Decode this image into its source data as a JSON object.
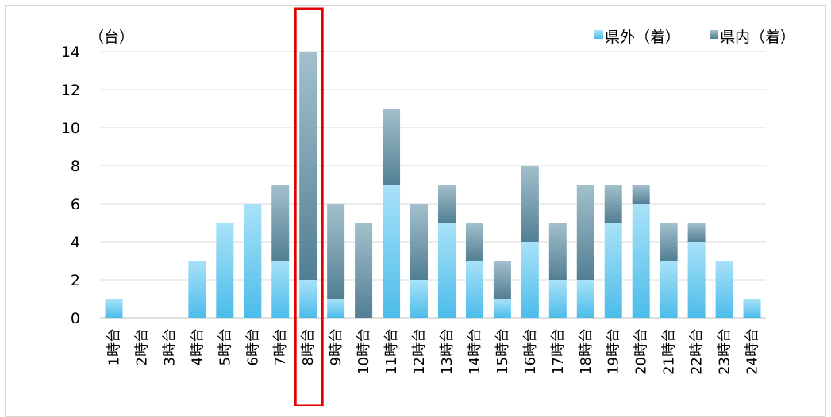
{
  "chart_data": {
    "type": "bar",
    "stacked": true,
    "unit_label": "（台）",
    "categories": [
      "1時台",
      "2時台",
      "3時台",
      "4時台",
      "5時台",
      "6時台",
      "7時台",
      "8時台",
      "9時台",
      "10時台",
      "11時台",
      "12時台",
      "13時台",
      "14時台",
      "15時台",
      "16時台",
      "17時台",
      "18時台",
      "19時台",
      "20時台",
      "21時台",
      "22時台",
      "23時台",
      "24時台"
    ],
    "series": [
      {
        "name": "県外（着）",
        "color": "#5bc3ec",
        "values": [
          1,
          0,
          0,
          3,
          5,
          6,
          3,
          2,
          1,
          0,
          7,
          2,
          5,
          3,
          1,
          4,
          2,
          2,
          5,
          6,
          3,
          4,
          3,
          1
        ]
      },
      {
        "name": "県内（着）",
        "color": "#6f9db0",
        "values": [
          0,
          0,
          0,
          0,
          0,
          0,
          4,
          12,
          5,
          5,
          4,
          4,
          2,
          2,
          2,
          4,
          3,
          5,
          2,
          1,
          2,
          1,
          0,
          0
        ]
      }
    ],
    "yticks": [
      "0",
      "2",
      "4",
      "6",
      "8",
      "10",
      "12",
      "14"
    ],
    "ylim": [
      0,
      14
    ],
    "grid": true,
    "legend_position": "top-right",
    "highlight_category": "8時台",
    "highlight_color": "#e00000"
  }
}
